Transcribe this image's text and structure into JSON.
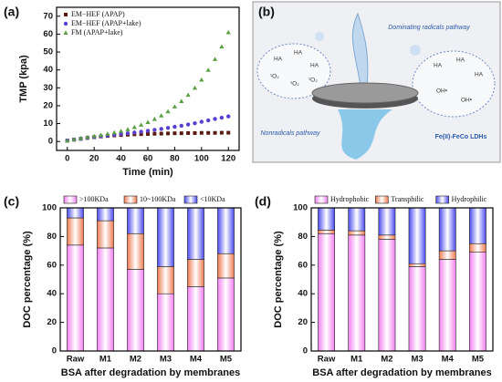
{
  "chart_data": [
    {
      "type": "scatter",
      "panel_label": "(a)",
      "xlabel": "Time (min)",
      "ylabel": "TMP (kpa)",
      "x": [
        0,
        5,
        10,
        15,
        20,
        25,
        30,
        35,
        40,
        45,
        50,
        55,
        60,
        65,
        70,
        75,
        80,
        85,
        90,
        95,
        100,
        105,
        110,
        115,
        120
      ],
      "series": [
        {
          "name": "EM−HEF (APAP)",
          "color": "#5a1a10",
          "marker": "square",
          "values": [
            0.5,
            1.0,
            1.5,
            2.0,
            2.4,
            2.8,
            3.1,
            3.4,
            3.6,
            3.8,
            4.0,
            4.1,
            4.2,
            4.3,
            4.4,
            4.5,
            4.6,
            4.6,
            4.7,
            4.7,
            4.8,
            4.8,
            4.8,
            4.9,
            4.9
          ]
        },
        {
          "name": "EM−HEF (APAP+lake)",
          "color": "#5a3fd0",
          "marker": "circle",
          "values": [
            0.5,
            1.0,
            1.5,
            2.0,
            2.5,
            3.0,
            3.4,
            3.8,
            4.2,
            4.6,
            5.0,
            5.5,
            6.0,
            6.5,
            7.0,
            7.6,
            8.2,
            8.8,
            9.5,
            10.2,
            11,
            11.8,
            12.6,
            13.3,
            14
          ]
        },
        {
          "name": "FM (APAP+lake)",
          "color": "#5aa040",
          "marker": "triangle",
          "values": [
            0.5,
            1.2,
            1.8,
            2.4,
            3.0,
            3.6,
            4.3,
            5.0,
            5.8,
            6.8,
            8,
            9.3,
            10.8,
            12.5,
            14.5,
            16.8,
            19.5,
            22.5,
            26,
            30,
            34.5,
            40,
            46,
            53,
            61
          ]
        }
      ],
      "xlim": [
        -8,
        128
      ],
      "xticks": [
        0,
        20,
        40,
        60,
        80,
        100,
        120
      ],
      "ylim": [
        -5,
        75
      ],
      "yticks": [
        0,
        10,
        20,
        30,
        40,
        50,
        60,
        70
      ],
      "legend": "upper left",
      "grid": false
    },
    {
      "type": "bar",
      "stacked": true,
      "panel_label": "(c)",
      "xlabel": "BSA after degradation by membranes",
      "ylabel": "DOC percentage (%)",
      "categories": [
        "Raw",
        "M1",
        "M2",
        "M3",
        "M4",
        "M5"
      ],
      "series": [
        {
          "name": ">100KDa",
          "color": "#f27ff0",
          "values": [
            74,
            72,
            57,
            40,
            45,
            51
          ]
        },
        {
          "name": "10~100KDa",
          "color": "#ee7a50",
          "values": [
            19,
            19,
            25,
            19,
            19,
            17
          ]
        },
        {
          "name": "<10KDa",
          "color": "#4a4af0",
          "values": [
            7,
            9,
            18,
            41,
            36,
            32
          ]
        }
      ],
      "ylim": [
        0,
        100
      ],
      "yticks": [
        0,
        20,
        40,
        60,
        80,
        100
      ],
      "legend": "top",
      "grid": false
    },
    {
      "type": "bar",
      "stacked": true,
      "panel_label": "(d)",
      "xlabel": "BSA after degradation by membranes",
      "ylabel": "DOC percentage (%)",
      "categories": [
        "Raw",
        "M1",
        "M2",
        "M3",
        "M4",
        "M5"
      ],
      "series": [
        {
          "name": "Hydrophobic",
          "color": "#f27ff0",
          "values": [
            82,
            81,
            78,
            59,
            64,
            69
          ]
        },
        {
          "name": "Transphilic",
          "color": "#ee7a50",
          "values": [
            2.5,
            3,
            3,
            2,
            6,
            6
          ]
        },
        {
          "name": "Hydrophilic",
          "color": "#4a4af0",
          "values": [
            15.5,
            16,
            19,
            39,
            30,
            25
          ]
        }
      ],
      "ylim": [
        0,
        100
      ],
      "yticks": [
        0,
        20,
        40,
        60,
        80,
        100
      ],
      "legend": "top",
      "grid": false
    }
  ],
  "diagram": {
    "panel_label": "(b)",
    "top_label": "Dominating radicals pathway",
    "left_label": "Nonradicals pathway",
    "material": "Fe(II)-FeCo LDHs",
    "left_bubble": [
      "HA",
      "HA",
      "HA",
      "¹O₂",
      "¹O₂",
      "¹O₂"
    ],
    "right_bubble": [
      "HA",
      "HA",
      "HA",
      "OH•",
      "OH•"
    ]
  }
}
